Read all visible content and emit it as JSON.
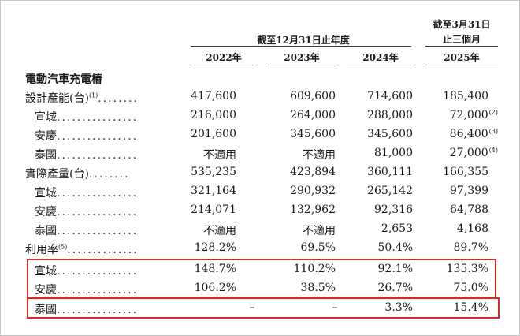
{
  "header": {
    "period_group": "截至12月31日止年度",
    "q1_line1": "截至3月31日",
    "q1_line2": "止三個月",
    "years": [
      "2022年",
      "2023年",
      "2024年",
      "2025年"
    ]
  },
  "section_title": "電動汽車充電樁",
  "rows": [
    {
      "label": "設計產能(台)",
      "sup": "(1)",
      "dots": "........",
      "values": [
        "417,600",
        "609,600",
        "714,600",
        "185,400"
      ]
    },
    {
      "label": "宣城",
      "dots": "................",
      "values": [
        "216,000",
        "264,000",
        "288,000",
        "72,000"
      ],
      "sup4": "(2)"
    },
    {
      "label": "安慶",
      "dots": "................",
      "values": [
        "201,600",
        "345,600",
        "345,600",
        "86,400"
      ],
      "sup4": "(3)"
    },
    {
      "label": "泰國",
      "dots": "................",
      "values": [
        "不適用",
        "不適用",
        "81,000",
        "27,000"
      ],
      "sup4": "(4)"
    },
    {
      "label": "實際產量(台)",
      "dots": "........",
      "values": [
        "535,235",
        "423,894",
        "360,111",
        "166,355"
      ]
    },
    {
      "label": "宣城",
      "dots": "................",
      "values": [
        "321,164",
        "290,932",
        "265,142",
        "97,399"
      ]
    },
    {
      "label": "安慶",
      "dots": "................",
      "values": [
        "214,071",
        "132,962",
        "92,316",
        "64,788"
      ]
    },
    {
      "label": "泰國",
      "dots": "................",
      "values": [
        "不適用",
        "不適用",
        "2,653",
        "4,168"
      ]
    },
    {
      "label": "利用率",
      "sup": "(5)",
      "dots": "..............",
      "values": [
        "128.2%",
        "69.5%",
        "50.4%",
        "89.7%"
      ]
    },
    {
      "label": "宣城",
      "dots": "................",
      "values": [
        "148.7%",
        "110.2%",
        "92.1%",
        "135.3%"
      ]
    },
    {
      "label": "安慶",
      "dots": "................",
      "values": [
        "106.2%",
        "38.5%",
        "26.7%",
        "75.0%"
      ]
    },
    {
      "label": "泰國",
      "dots": "................",
      "values": [
        "–",
        "–",
        "3.3%",
        "15.4%"
      ]
    }
  ],
  "highlight_color": "#d62a2a"
}
